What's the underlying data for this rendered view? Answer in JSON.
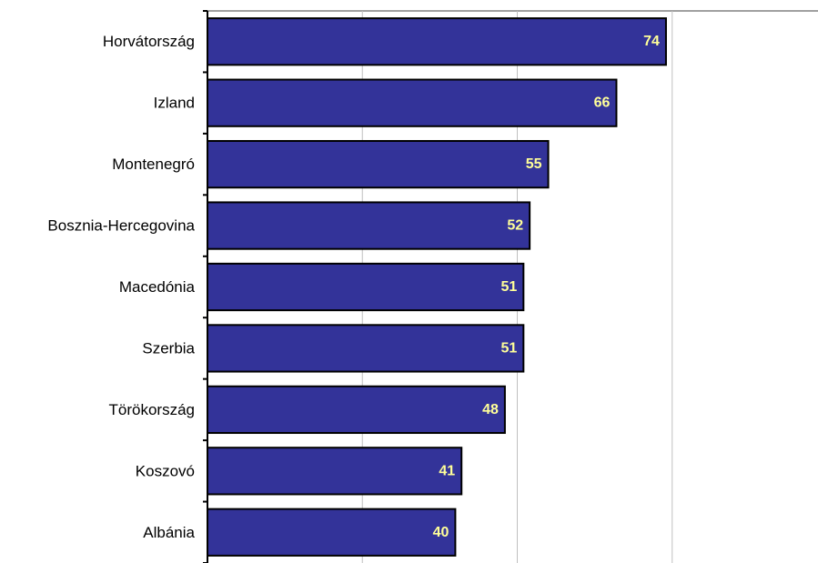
{
  "chart_data": {
    "type": "bar",
    "orientation": "horizontal",
    "categories": [
      "Horvátország",
      "Izland",
      "Montenegró",
      "Bosznia-Hercegovina",
      "Macedónia",
      "Szerbia",
      "Törökország",
      "Koszovó",
      "Albánia"
    ],
    "values": [
      74,
      66,
      55,
      52,
      51,
      51,
      48,
      41,
      40
    ],
    "value_labels": [
      "74",
      "66",
      "55",
      "52",
      "51",
      "51",
      "48",
      "41",
      "40"
    ],
    "title": "",
    "xlabel": "",
    "ylabel": "",
    "xlim": [
      0,
      100
    ],
    "grid": true,
    "legend": "none",
    "colors": {
      "bar_fill": "#333399",
      "bar_stroke": "#000000",
      "value_label": "#ffff99",
      "gridline": "#c0c0c0",
      "axis": "#000000",
      "top_line": "#808080"
    }
  }
}
